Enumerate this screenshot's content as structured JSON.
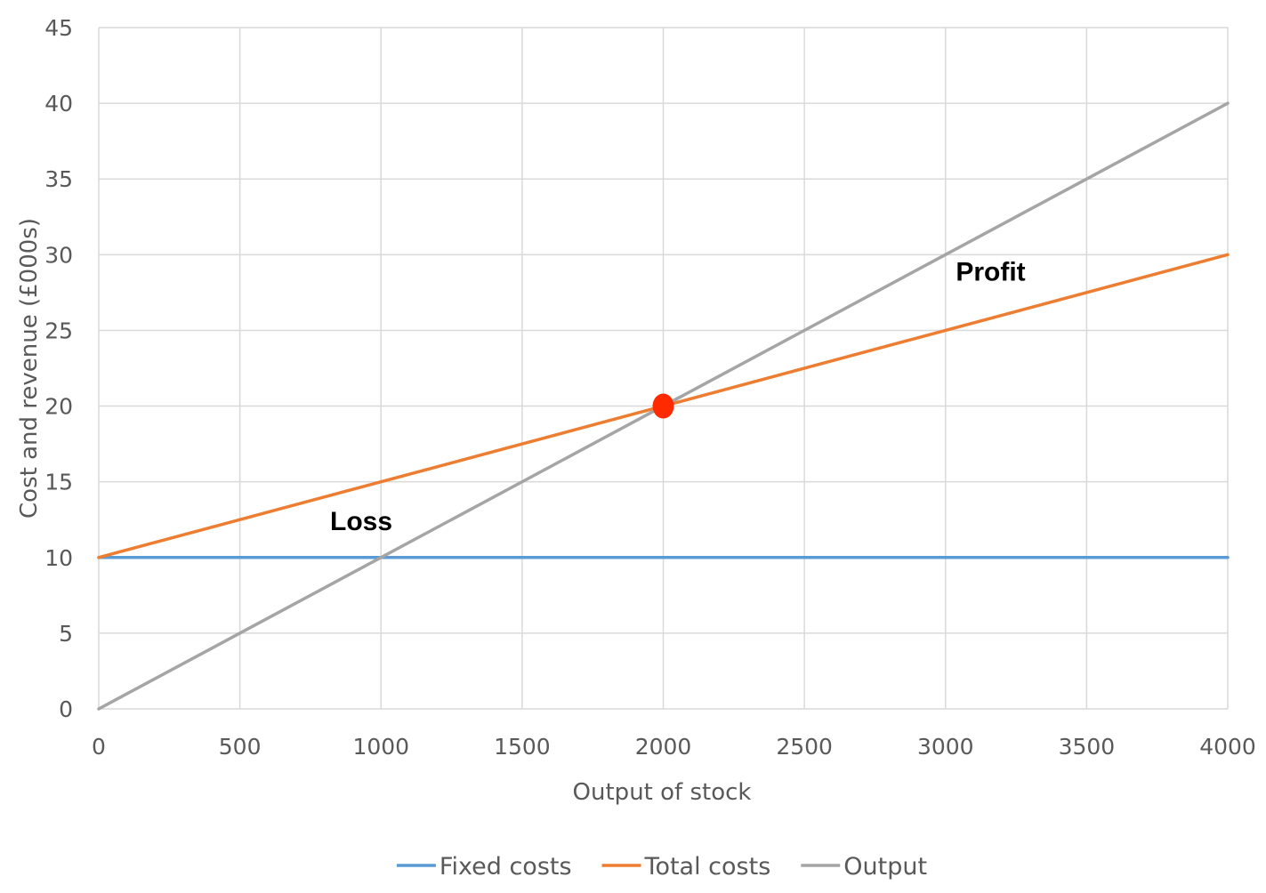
{
  "chart_data": {
    "type": "line",
    "xlabel": "Output of stock",
    "ylabel": "Cost and revenue (£000s)",
    "xlim": [
      0,
      4000
    ],
    "ylim": [
      0,
      45
    ],
    "x_ticks": [
      0,
      500,
      1000,
      1500,
      2000,
      2500,
      3000,
      3500,
      4000
    ],
    "y_ticks": [
      0,
      5,
      10,
      15,
      20,
      25,
      30,
      35,
      40,
      45
    ],
    "grid": true,
    "legend_position": "bottom",
    "series": [
      {
        "name": "Fixed costs",
        "color": "#5b9bd5",
        "x": [
          0,
          4000
        ],
        "y": [
          10,
          10
        ]
      },
      {
        "name": "Total costs",
        "color": "#ed7d31",
        "x": [
          0,
          4000
        ],
        "y": [
          10,
          30
        ]
      },
      {
        "name": "Output",
        "color": "#a5a5a5",
        "x": [
          0,
          4000
        ],
        "y": [
          0,
          40
        ]
      }
    ],
    "annotations": [
      {
        "text": "Loss",
        "x": 930,
        "y": 11.8
      },
      {
        "text": "Profit",
        "x": 3160,
        "y": 28.3
      }
    ],
    "highlight_point": {
      "x": 2000,
      "y": 20,
      "color": "#ff2a00"
    }
  }
}
